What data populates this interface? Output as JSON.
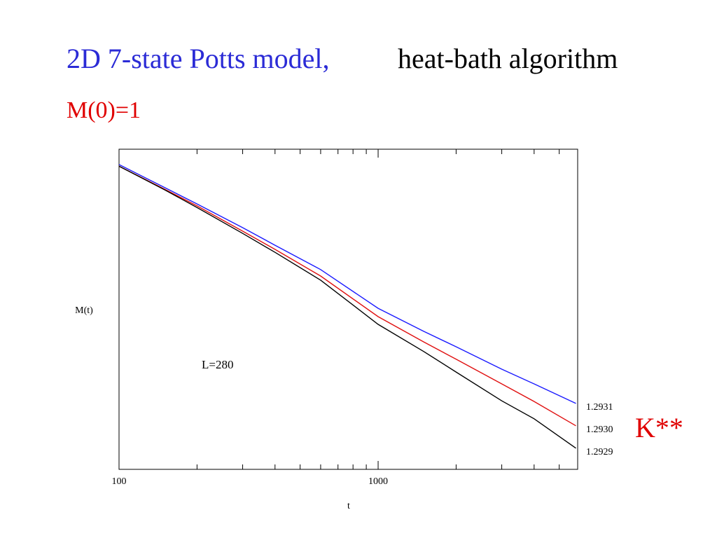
{
  "title": "2D 7-state Potts model,",
  "subtitle": "heat-bath algorithm",
  "annotation": "M(0)=1",
  "side_label": "K**",
  "chart_data": {
    "type": "line",
    "x_label": "t",
    "y_label": "M(t)",
    "annotation": "L=280",
    "x_log": true,
    "xlim": [
      100,
      5890
    ],
    "xticks": [
      100,
      1000
    ],
    "xminorticks": [
      200,
      300,
      400,
      500,
      600,
      700,
      800,
      900,
      2000,
      3000,
      4000,
      5000
    ],
    "ylim": [
      0,
      1
    ],
    "x": [
      100,
      150,
      200,
      300,
      400,
      600,
      1000,
      1500,
      2000,
      3000,
      4000,
      5800
    ],
    "series": [
      {
        "name": "1.2931",
        "color": "#1a1aff",
        "values": [
          0.952,
          0.88,
          0.829,
          0.755,
          0.7,
          0.624,
          0.503,
          0.431,
          0.383,
          0.313,
          0.267,
          0.206
        ]
      },
      {
        "name": "1.2930",
        "color": "#e01010",
        "values": [
          0.947,
          0.875,
          0.823,
          0.744,
          0.687,
          0.604,
          0.477,
          0.398,
          0.344,
          0.267,
          0.212,
          0.136
        ]
      },
      {
        "name": "1.2929",
        "color": "#000000",
        "values": [
          0.947,
          0.873,
          0.818,
          0.737,
          0.678,
          0.591,
          0.453,
          0.368,
          0.304,
          0.214,
          0.158,
          0.066
        ]
      }
    ]
  }
}
